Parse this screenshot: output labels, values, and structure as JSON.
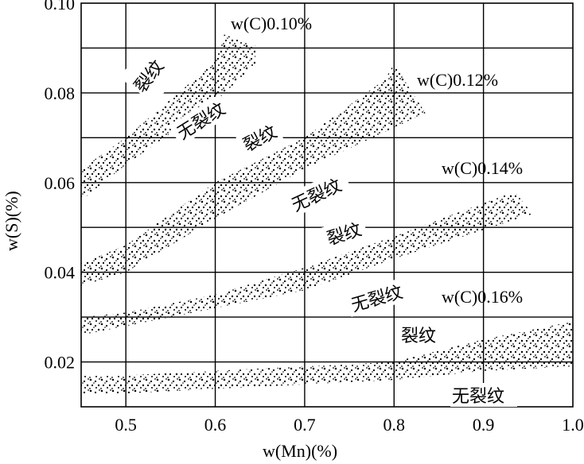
{
  "chart_data": {
    "type": "area",
    "title": "",
    "xlabel": "w(Mn)(%)",
    "ylabel": "w(S)(%)",
    "xlim": [
      0.45,
      1.0
    ],
    "ylim": [
      0.01,
      0.1
    ],
    "grid": true,
    "xticks": [
      0.5,
      0.6,
      0.7,
      0.8,
      0.9,
      1.0
    ],
    "xtick_labels": [
      "0.5",
      "0.6",
      "0.7",
      "0.8",
      "0.9",
      "1.0"
    ],
    "yticks": [
      0.02,
      0.04,
      0.06,
      0.08,
      0.1
    ],
    "ytick_labels": [
      "0.02",
      "0.04",
      "0.06",
      "0.08",
      "0.10"
    ],
    "series": [
      {
        "name": "w(C)0.10%",
        "band": {
          "upper": [
            [
              0.45,
              0.063
            ],
            [
              0.5,
              0.07
            ],
            [
              0.6,
              0.087
            ],
            [
              0.61,
              0.093
            ],
            [
              0.645,
              0.0905
            ]
          ],
          "lower": [
            [
              0.45,
              0.056
            ],
            [
              0.5,
              0.064
            ],
            [
              0.6,
              0.078
            ],
            [
              0.645,
              0.0865
            ]
          ]
        }
      },
      {
        "name": "w(C)0.12%",
        "band": {
          "upper": [
            [
              0.45,
              0.042
            ],
            [
              0.5,
              0.046
            ],
            [
              0.6,
              0.06
            ],
            [
              0.7,
              0.07
            ],
            [
              0.79,
              0.083
            ],
            [
              0.8,
              0.0865
            ],
            [
              0.835,
              0.0755
            ]
          ],
          "lower": [
            [
              0.45,
              0.037
            ],
            [
              0.5,
              0.04
            ],
            [
              0.6,
              0.052
            ],
            [
              0.7,
              0.063
            ],
            [
              0.835,
              0.0755
            ]
          ]
        }
      },
      {
        "name": "w(C)0.14%",
        "band": {
          "upper": [
            [
              0.45,
              0.03
            ],
            [
              0.5,
              0.031
            ],
            [
              0.6,
              0.035
            ],
            [
              0.7,
              0.041
            ],
            [
              0.8,
              0.048
            ],
            [
              0.935,
              0.058
            ],
            [
              0.955,
              0.053
            ]
          ],
          "lower": [
            [
              0.45,
              0.026
            ],
            [
              0.5,
              0.028
            ],
            [
              0.6,
              0.032
            ],
            [
              0.7,
              0.036
            ],
            [
              0.8,
              0.043
            ],
            [
              0.955,
              0.053
            ]
          ]
        }
      },
      {
        "name": "w(C)0.16%",
        "band": {
          "upper": [
            [
              0.45,
              0.017
            ],
            [
              0.5,
              0.017
            ],
            [
              0.6,
              0.018
            ],
            [
              0.7,
              0.019
            ],
            [
              0.8,
              0.02
            ],
            [
              0.9,
              0.025
            ],
            [
              1.0,
              0.029
            ]
          ],
          "lower": [
            [
              0.45,
              0.013
            ],
            [
              0.5,
              0.013
            ],
            [
              0.6,
              0.014
            ],
            [
              0.7,
              0.015
            ],
            [
              0.8,
              0.016
            ],
            [
              0.9,
              0.018
            ],
            [
              1.0,
              0.019
            ]
          ]
        }
      }
    ],
    "region_labels": {
      "crack": "裂纹",
      "no_crack": "无裂纹"
    }
  }
}
